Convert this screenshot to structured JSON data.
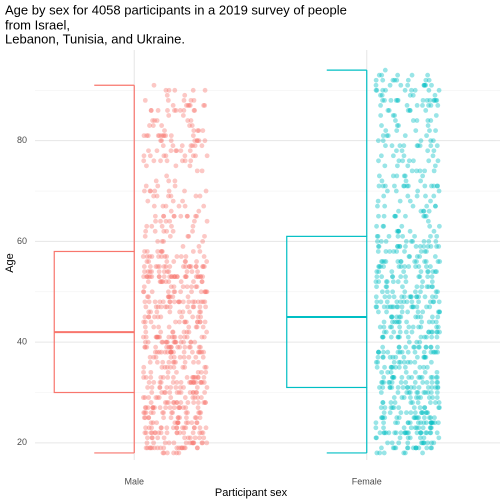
{
  "chart_data": {
    "type": "boxplot",
    "title_lines": [
      "Age by sex for 4058 participants in a 2019 survey of people",
      "from Israel,",
      "Lebanon, Tunisia, and Ukraine."
    ],
    "xlabel": "Participant sex",
    "ylabel": "Age",
    "categories": [
      "Male",
      "Female"
    ],
    "boxes": [
      {
        "min": 18,
        "q1": 30,
        "median": 42,
        "q3": 58,
        "max": 91,
        "color": "#F8766D"
      },
      {
        "min": 18,
        "q1": 31,
        "median": 45,
        "q3": 61,
        "max": 94,
        "color": "#00BFC4"
      }
    ],
    "ylim": [
      16.6,
      98
    ],
    "yticks": [
      20,
      40,
      60,
      80
    ],
    "minor_yticks": [
      30,
      50,
      70,
      90
    ],
    "grid": true
  }
}
